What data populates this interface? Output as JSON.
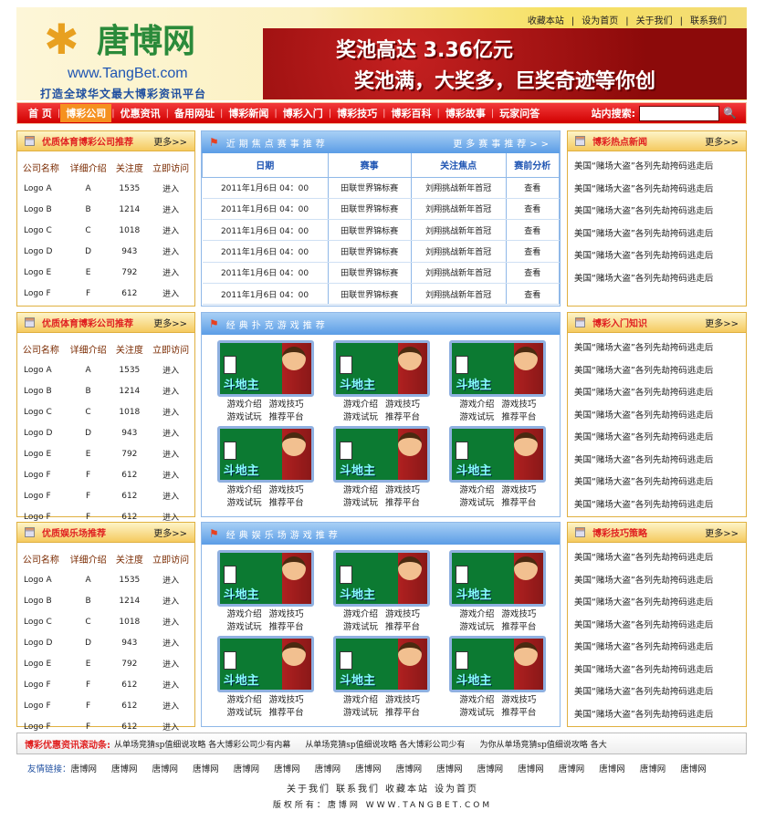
{
  "header": {
    "top_links": [
      "收藏本站",
      "设为首页",
      "关于我们",
      "联系我们"
    ],
    "logo_text": "唐博网",
    "logo_url": "www.TangBet.com",
    "slogan": "打造全球华文最大博彩资讯平台",
    "banner_line1": "奖池高达 3.36亿元",
    "banner_line2": "奖池满，大奖多，巨奖奇迹等你创"
  },
  "nav": {
    "items": [
      "首 页",
      "博彩公司",
      "优惠资讯",
      "备用网址",
      "博彩新闻",
      "博彩入门",
      "博彩技巧",
      "博彩百科",
      "博彩故事",
      "玩家问答"
    ],
    "active": 1,
    "search_label": "站内搜索:",
    "search_value": ""
  },
  "left_panels": [
    {
      "title": "优质体育博彩公司推荐",
      "more": "更多>>",
      "headers": [
        "公司名称",
        "详细介绍",
        "关注度",
        "立即访问"
      ],
      "rows": [
        [
          "Logo A",
          "A",
          "1535",
          "进入"
        ],
        [
          "Logo B",
          "B",
          "1214",
          "进入"
        ],
        [
          "Logo C",
          "C",
          "1018",
          "进入"
        ],
        [
          "Logo D",
          "D",
          "943",
          "进入"
        ],
        [
          "Logo E",
          "E",
          "792",
          "进入"
        ],
        [
          "Logo F",
          "F",
          "612",
          "进入"
        ]
      ]
    },
    {
      "title": "优质体育博彩公司推荐",
      "more": "更多>>",
      "headers": [
        "公司名称",
        "详细介绍",
        "关注度",
        "立即访问"
      ],
      "rows": [
        [
          "Logo A",
          "A",
          "1535",
          "进入"
        ],
        [
          "Logo B",
          "B",
          "1214",
          "进入"
        ],
        [
          "Logo C",
          "C",
          "1018",
          "进入"
        ],
        [
          "Logo D",
          "D",
          "943",
          "进入"
        ],
        [
          "Logo E",
          "E",
          "792",
          "进入"
        ],
        [
          "Logo F",
          "F",
          "612",
          "进入"
        ],
        [
          "Logo F",
          "F",
          "612",
          "进入"
        ],
        [
          "Logo F",
          "F",
          "612",
          "进入"
        ]
      ]
    },
    {
      "title": "优质娱乐场推荐",
      "more": "更多>>",
      "headers": [
        "公司名称",
        "详细介绍",
        "关注度",
        "立即访问"
      ],
      "rows": [
        [
          "Logo A",
          "A",
          "1535",
          "进入"
        ],
        [
          "Logo B",
          "B",
          "1214",
          "进入"
        ],
        [
          "Logo C",
          "C",
          "1018",
          "进入"
        ],
        [
          "Logo D",
          "D",
          "943",
          "进入"
        ],
        [
          "Logo E",
          "E",
          "792",
          "进入"
        ],
        [
          "Logo F",
          "F",
          "612",
          "进入"
        ],
        [
          "Logo F",
          "F",
          "612",
          "进入"
        ],
        [
          "Logo F",
          "F",
          "612",
          "进入"
        ]
      ]
    }
  ],
  "matches": {
    "title": "近期焦点赛事推荐",
    "more": "更多赛事推荐>>",
    "headers": [
      "日期",
      "赛事",
      "关注焦点",
      "赛前分析"
    ],
    "rows": [
      [
        "2011年1月6日 04：00",
        "田联世界锦标赛",
        "刘翔挑战新年首冠",
        "查看"
      ],
      [
        "2011年1月6日 04：00",
        "田联世界锦标赛",
        "刘翔挑战新年首冠",
        "查看"
      ],
      [
        "2011年1月6日 04：00",
        "田联世界锦标赛",
        "刘翔挑战新年首冠",
        "查看"
      ],
      [
        "2011年1月6日 04：00",
        "田联世界锦标赛",
        "刘翔挑战新年首冠",
        "查看"
      ],
      [
        "2011年1月6日 04：00",
        "田联世界锦标赛",
        "刘翔挑战新年首冠",
        "查看"
      ],
      [
        "2011年1月6日 04：00",
        "田联世界锦标赛",
        "刘翔挑战新年首冠",
        "查看"
      ]
    ]
  },
  "game_panels": [
    {
      "title": "经典扑克游戏推荐",
      "games": [
        {
          "name": "斗地主",
          "links": [
            "游戏介绍",
            "游戏技巧",
            "游戏试玩",
            "推荐平台"
          ]
        },
        {
          "name": "斗地主",
          "links": [
            "游戏介绍",
            "游戏技巧",
            "游戏试玩",
            "推荐平台"
          ]
        },
        {
          "name": "斗地主",
          "links": [
            "游戏介绍",
            "游戏技巧",
            "游戏试玩",
            "推荐平台"
          ]
        },
        {
          "name": "斗地主",
          "links": [
            "游戏介绍",
            "游戏技巧",
            "游戏试玩",
            "推荐平台"
          ]
        },
        {
          "name": "斗地主",
          "links": [
            "游戏介绍",
            "游戏技巧",
            "游戏试玩",
            "推荐平台"
          ]
        },
        {
          "name": "斗地主",
          "links": [
            "游戏介绍",
            "游戏技巧",
            "游戏试玩",
            "推荐平台"
          ]
        }
      ]
    },
    {
      "title": "经典娱乐场游戏推荐",
      "games": [
        {
          "name": "斗地主",
          "links": [
            "游戏介绍",
            "游戏技巧",
            "游戏试玩",
            "推荐平台"
          ]
        },
        {
          "name": "斗地主",
          "links": [
            "游戏介绍",
            "游戏技巧",
            "游戏试玩",
            "推荐平台"
          ]
        },
        {
          "name": "斗地主",
          "links": [
            "游戏介绍",
            "游戏技巧",
            "游戏试玩",
            "推荐平台"
          ]
        },
        {
          "name": "斗地主",
          "links": [
            "游戏介绍",
            "游戏技巧",
            "游戏试玩",
            "推荐平台"
          ]
        },
        {
          "name": "斗地主",
          "links": [
            "游戏介绍",
            "游戏技巧",
            "游戏试玩",
            "推荐平台"
          ]
        },
        {
          "name": "斗地主",
          "links": [
            "游戏介绍",
            "游戏技巧",
            "游戏试玩",
            "推荐平台"
          ]
        }
      ]
    }
  ],
  "right_panels": [
    {
      "title": "博彩热点新闻",
      "more": "更多>>",
      "items": [
        "美国“赌场大盗”各列先劫挎码逃走后",
        "美国“赌场大盗”各列先劫挎码逃走后",
        "美国“赌场大盗”各列先劫挎码逃走后",
        "美国“赌场大盗”各列先劫挎码逃走后",
        "美国“赌场大盗”各列先劫挎码逃走后",
        "美国“赌场大盗”各列先劫挎码逃走后"
      ]
    },
    {
      "title": "博彩入门知识",
      "more": "更多>>",
      "items": [
        "美国“赌场大盗”各列先劫挎码逃走后",
        "美国“赌场大盗”各列先劫挎码逃走后",
        "美国“赌场大盗”各列先劫挎码逃走后",
        "美国“赌场大盗”各列先劫挎码逃走后",
        "美国“赌场大盗”各列先劫挎码逃走后",
        "美国“赌场大盗”各列先劫挎码逃走后",
        "美国“赌场大盗”各列先劫挎码逃走后",
        "美国“赌场大盗”各列先劫挎码逃走后"
      ]
    },
    {
      "title": "博彩技巧策略",
      "more": "更多>>",
      "items": [
        "美国“赌场大盗”各列先劫挎码逃走后",
        "美国“赌场大盗”各列先劫挎码逃走后",
        "美国“赌场大盗”各列先劫挎码逃走后",
        "美国“赌场大盗”各列先劫挎码逃走后",
        "美国“赌场大盗”各列先劫挎码逃走后",
        "美国“赌场大盗”各列先劫挎码逃走后",
        "美国“赌场大盗”各列先劫挎码逃走后",
        "美国“赌场大盗”各列先劫挎码逃走后"
      ]
    }
  ],
  "ticker": {
    "label": "博彩优惠资讯滚动条:",
    "messages": [
      "从单场竞猜sp值细说攻略 各大博彩公司少有内幕",
      "从单场竞猜sp值细说攻略 各大博彩公司少有",
      "为你从单场竞猜sp值细说攻略 各大"
    ]
  },
  "friends": {
    "label": "友情链接：",
    "links": [
      "唐博网",
      "唐博网",
      "唐博网",
      "唐博网",
      "唐博网",
      "唐博网",
      "唐博网",
      "唐博网",
      "唐博网",
      "唐博网",
      "唐博网",
      "唐博网",
      "唐博网",
      "唐博网",
      "唐博网",
      "唐博网"
    ]
  },
  "footer": {
    "links": [
      "关于我们",
      "联系我们",
      "收藏本站",
      "设为首页"
    ],
    "copyright": "版权所有：唐博网 WWW.TANGBET.COM"
  },
  "colors": {
    "nav_red": "#d10000",
    "accent_orange": "#f59120",
    "title_red": "#e02020",
    "blue_header": "#5b9de6"
  }
}
